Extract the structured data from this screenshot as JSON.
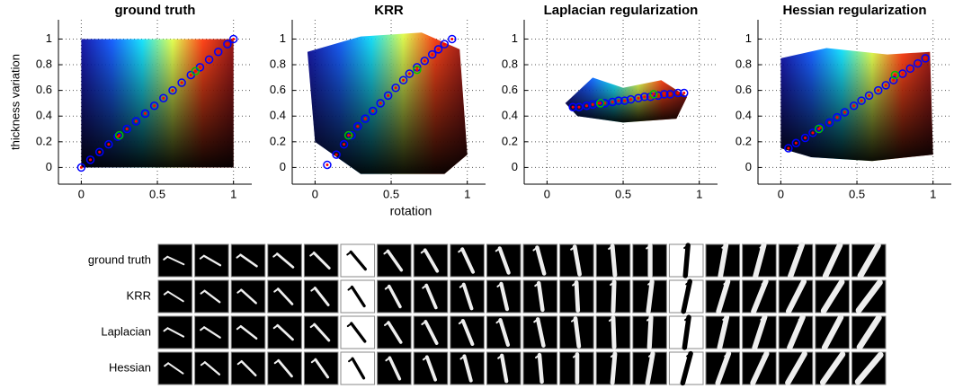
{
  "chart_data": [
    {
      "type": "scatter",
      "title": "ground truth",
      "y_label": "thickness variation",
      "xlim": [
        -0.15,
        1.12
      ],
      "ylim": [
        -0.13,
        1.15
      ],
      "xticks": [
        0,
        0.5,
        1
      ],
      "yticks": [
        0,
        0.2,
        0.4,
        0.6,
        0.8,
        1
      ],
      "grid": true,
      "series": [
        {
          "color": "#0000ff",
          "x": [
            0,
            0.06,
            0.12,
            0.18,
            0.24,
            0.3,
            0.36,
            0.42,
            0.48,
            0.54,
            0.6,
            0.66,
            0.72,
            0.78,
            0.84,
            0.9,
            0.96,
            1
          ],
          "values": [
            0,
            0.06,
            0.12,
            0.18,
            0.24,
            0.3,
            0.36,
            0.42,
            0.48,
            0.54,
            0.6,
            0.66,
            0.72,
            0.78,
            0.84,
            0.9,
            0.96,
            1
          ]
        },
        {
          "color": "#00c000",
          "x": [
            0.25,
            0.75
          ],
          "values": [
            0.25,
            0.75
          ]
        }
      ]
    },
    {
      "type": "scatter",
      "title": "KRR",
      "xlim": [
        -0.15,
        1.12
      ],
      "ylim": [
        -0.13,
        1.15
      ],
      "xticks": [
        0,
        0.5,
        1
      ],
      "yticks": [
        0,
        0.2,
        0.4,
        0.6,
        0.8,
        1
      ],
      "grid": true,
      "series": [
        {
          "color": "#0000ff",
          "x": [
            0.08,
            0.14,
            0.19,
            0.24,
            0.28,
            0.33,
            0.38,
            0.43,
            0.48,
            0.53,
            0.58,
            0.62,
            0.67,
            0.72,
            0.77,
            0.81,
            0.85,
            0.9
          ],
          "values": [
            0.02,
            0.1,
            0.18,
            0.25,
            0.32,
            0.38,
            0.44,
            0.5,
            0.56,
            0.62,
            0.68,
            0.73,
            0.78,
            0.83,
            0.88,
            0.92,
            0.96,
            1
          ]
        },
        {
          "color": "#00c000",
          "x": [
            0.22,
            0.67
          ],
          "values": [
            0.25,
            0.76
          ]
        }
      ]
    },
    {
      "type": "scatter",
      "title": "Laplacian regularization",
      "xlim": [
        -0.15,
        1.12
      ],
      "ylim": [
        -0.13,
        1.15
      ],
      "xticks": [
        0,
        0.5,
        1
      ],
      "yticks": [
        0,
        0.2,
        0.4,
        0.6,
        0.8,
        1
      ],
      "grid": true,
      "series": [
        {
          "color": "#0000ff",
          "x": [
            0.17,
            0.21,
            0.26,
            0.3,
            0.34,
            0.38,
            0.43,
            0.47,
            0.51,
            0.55,
            0.6,
            0.64,
            0.68,
            0.73,
            0.77,
            0.81,
            0.86,
            0.9
          ],
          "values": [
            0.47,
            0.47,
            0.48,
            0.49,
            0.5,
            0.5,
            0.51,
            0.52,
            0.52,
            0.53,
            0.54,
            0.55,
            0.55,
            0.56,
            0.57,
            0.57,
            0.58,
            0.58
          ]
        },
        {
          "color": "#00c000",
          "x": [
            0.35,
            0.7
          ],
          "values": [
            0.5,
            0.57
          ]
        }
      ]
    },
    {
      "type": "scatter",
      "title": "Hessian regularization",
      "xlim": [
        -0.15,
        1.12
      ],
      "ylim": [
        -0.13,
        1.15
      ],
      "xticks": [
        0,
        0.5,
        1
      ],
      "yticks": [
        0,
        0.2,
        0.4,
        0.6,
        0.8,
        1
      ],
      "grid": true,
      "series": [
        {
          "color": "#0000ff",
          "x": [
            0.05,
            0.1,
            0.16,
            0.21,
            0.26,
            0.32,
            0.37,
            0.42,
            0.48,
            0.53,
            0.58,
            0.64,
            0.69,
            0.74,
            0.8,
            0.85,
            0.9,
            0.95
          ],
          "values": [
            0.15,
            0.19,
            0.23,
            0.27,
            0.31,
            0.35,
            0.39,
            0.43,
            0.48,
            0.52,
            0.56,
            0.6,
            0.64,
            0.68,
            0.73,
            0.77,
            0.81,
            0.85
          ]
        },
        {
          "color": "#00c000",
          "x": [
            0.25,
            0.75
          ],
          "values": [
            0.3,
            0.72
          ]
        }
      ]
    }
  ],
  "shared_x_label": "rotation",
  "image_rows": [
    "ground truth",
    "KRR",
    "Laplacian",
    "Hessian"
  ]
}
